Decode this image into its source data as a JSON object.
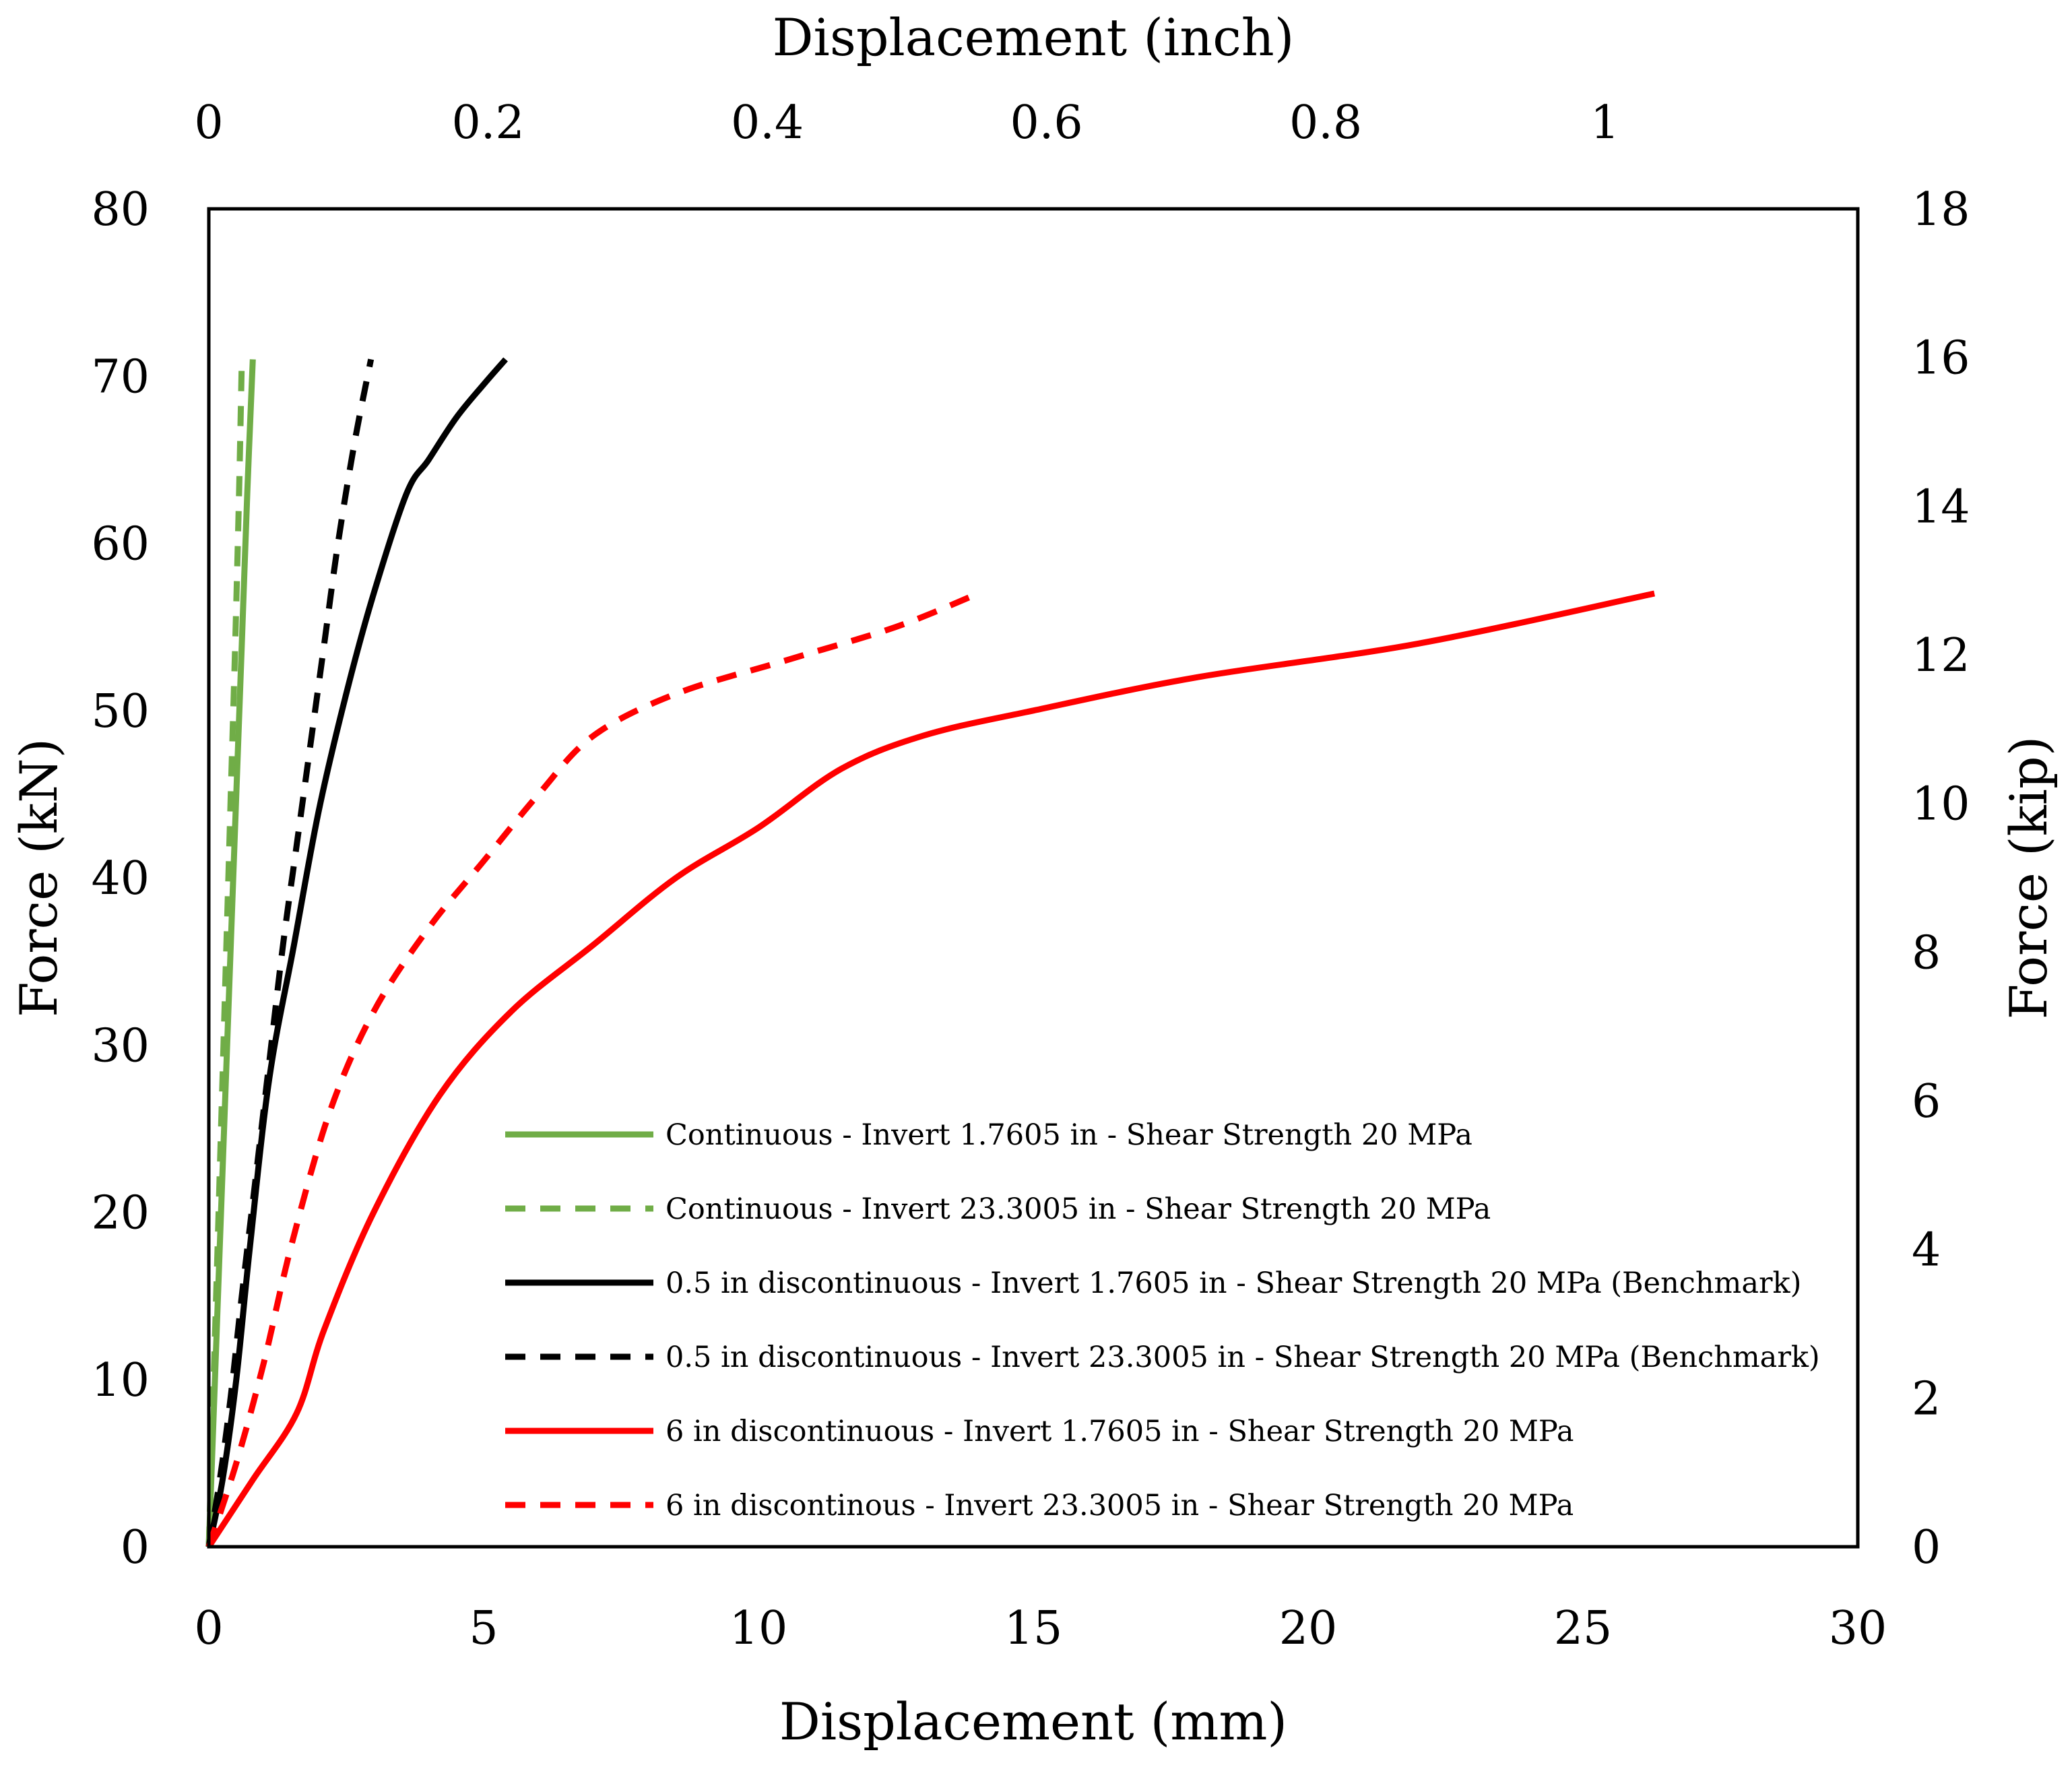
{
  "chart_data": {
    "type": "line",
    "title": "",
    "xlabel": "Displacement (mm)",
    "ylabel": "Force (kN)",
    "x2label": "Displacement (inch)",
    "y2label": "Force (kip)",
    "xlim": [
      0,
      30
    ],
    "ylim": [
      0,
      80
    ],
    "x2lim": [
      0,
      1.1811
    ],
    "y2lim": [
      0,
      18
    ],
    "xticks": [
      "0",
      "5",
      "10",
      "15",
      "20",
      "25",
      "30"
    ],
    "yticks": [
      "0",
      "10",
      "20",
      "30",
      "40",
      "50",
      "60",
      "70",
      "80"
    ],
    "x2ticks": [
      "0",
      "0.2",
      "0.4",
      "0.6",
      "0.8",
      "1"
    ],
    "y2ticks": [
      "0",
      "2",
      "4",
      "6",
      "8",
      "10",
      "12",
      "14",
      "16",
      "18"
    ],
    "grid": false,
    "legend_position": "bottom-right",
    "series": [
      {
        "name": "Continuous - Invert 1.7605 in - Shear Strength 20 MPa",
        "color": "#70ad47",
        "dash": "solid",
        "x": [
          0,
          0.1,
          0.2,
          0.3,
          0.4,
          0.5,
          0.6,
          0.7,
          0.8
        ],
        "y": [
          0,
          9,
          18,
          27,
          36,
          45,
          54,
          63,
          71
        ]
      },
      {
        "name": "Continuous - Invert 23.3005 in - Shear Strength 20 MPa",
        "color": "#70ad47",
        "dash": "dashed",
        "x": [
          0,
          0.08,
          0.16,
          0.24,
          0.32,
          0.4,
          0.48,
          0.55,
          0.6
        ],
        "y": [
          0,
          9,
          18,
          27,
          36,
          45,
          54,
          63,
          71
        ]
      },
      {
        "name": "0.5 in discontinuous - Invert 1.7605 in - Shear Strength 20 MPa (Benchmark)",
        "color": "#000000",
        "dash": "solid",
        "x": [
          0,
          0.25,
          0.5,
          0.75,
          1.1,
          1.55,
          2.0,
          2.5,
          3.0,
          3.6,
          4.0,
          4.5,
          5.0,
          5.4
        ],
        "y": [
          0,
          4,
          10,
          18,
          28,
          36,
          44,
          51,
          57,
          63,
          65,
          67.5,
          69.5,
          71
        ]
      },
      {
        "name": "0.5 in discontinuous - Invert 23.3005 in - Shear Strength 20 MPa (Benchmark)",
        "color": "#000000",
        "dash": "dashed",
        "x": [
          0,
          0.2,
          0.4,
          0.6,
          0.85,
          1.1,
          1.35,
          1.6,
          1.85,
          2.1,
          2.35,
          2.65,
          2.95
        ],
        "y": [
          0,
          4,
          9,
          15,
          22,
          29,
          36,
          42,
          48,
          54,
          60,
          66,
          71
        ]
      },
      {
        "name": "6 in discontinuous - Invert 1.7605 in - Shear Strength 20 MPa",
        "color": "#ff0000",
        "dash": "solid",
        "x": [
          0,
          0.8,
          1.6,
          2.1,
          3.0,
          4.2,
          5.5,
          7.0,
          8.5,
          10.0,
          11.5,
          13.0,
          15.0,
          18.0,
          22.0,
          26.3
        ],
        "y": [
          0,
          4,
          8,
          13,
          20,
          27,
          32,
          36,
          40,
          43,
          46.5,
          48.5,
          50,
          52,
          54,
          57
        ]
      },
      {
        "name": "6 in discontinous - Invert 23.3005 in - Shear Strength 20 MPa",
        "color": "#ff0000",
        "dash": "dashed",
        "x": [
          0,
          0.5,
          1.0,
          1.5,
          2.2,
          3.0,
          4.0,
          5.0,
          6.0,
          7.0,
          8.5,
          10.5,
          12.5,
          14.0
        ],
        "y": [
          0,
          5,
          11,
          18,
          26,
          32,
          37,
          41,
          45,
          48.5,
          51,
          53,
          55,
          57
        ]
      }
    ]
  }
}
